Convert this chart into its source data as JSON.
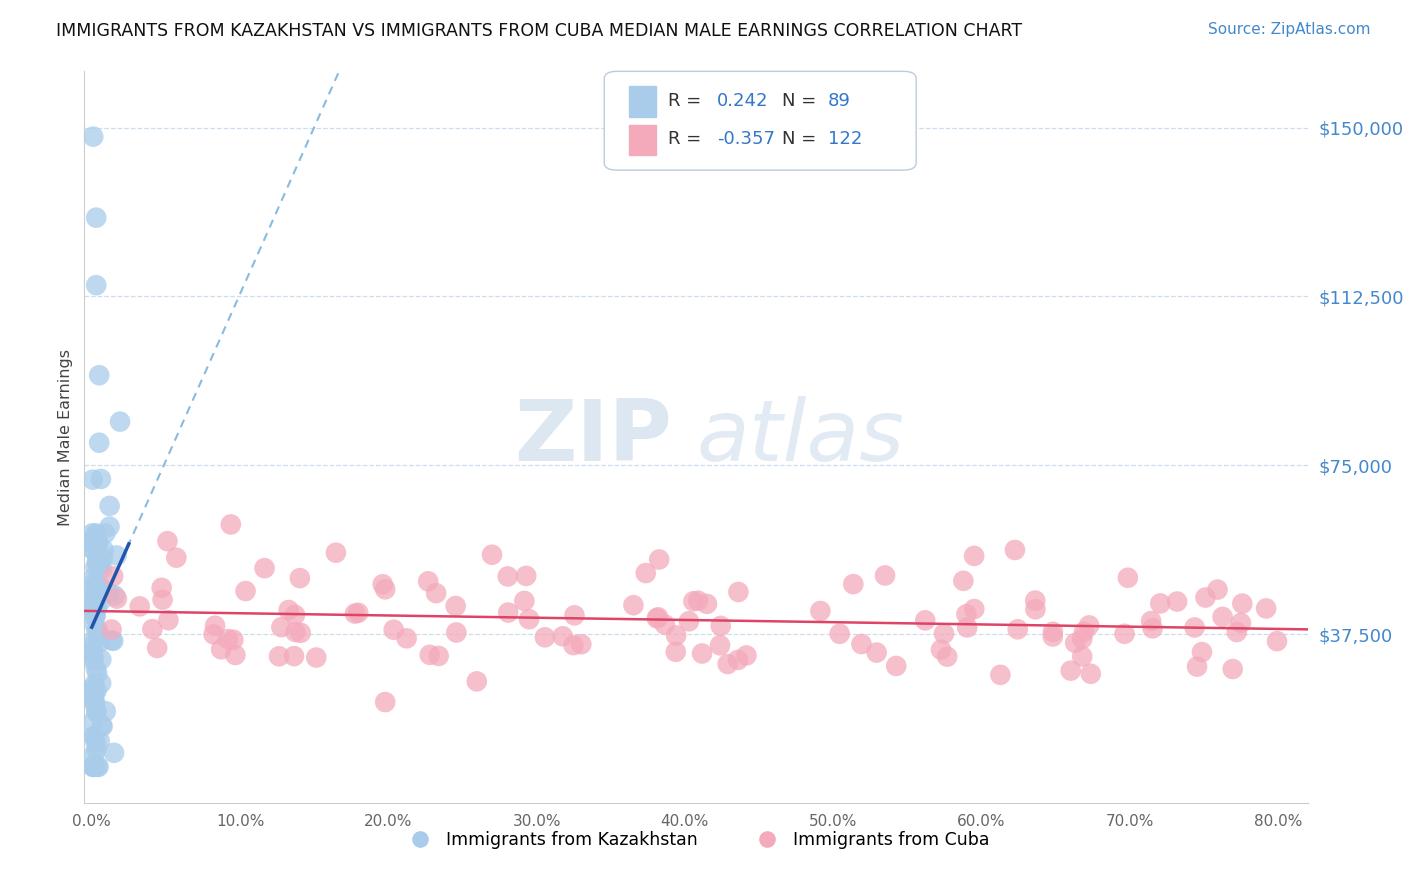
{
  "title": "IMMIGRANTS FROM KAZAKHSTAN VS IMMIGRANTS FROM CUBA MEDIAN MALE EARNINGS CORRELATION CHART",
  "source": "Source: ZipAtlas.com",
  "ylabel": "Median Male Earnings",
  "R_blue": 0.242,
  "N_blue": 89,
  "R_pink": -0.357,
  "N_pink": 122,
  "color_blue": "#A8CCEA",
  "color_pink": "#F4AABB",
  "line_blue_solid": "#2255AA",
  "line_blue_dashed": "#88BBDD",
  "line_pink": "#DD4466",
  "legend_blue_label": "Immigrants from Kazakhstan",
  "legend_pink_label": "Immigrants from Cuba",
  "ylim": [
    0,
    162500
  ],
  "xlim": [
    -0.005,
    0.82
  ],
  "yticks": [
    37500,
    75000,
    112500,
    150000
  ],
  "ytick_labels": [
    "$37,500",
    "$75,000",
    "$112,500",
    "$150,000"
  ],
  "xticks": [
    0.0,
    0.1,
    0.2,
    0.3,
    0.4,
    0.5,
    0.6,
    0.7,
    0.8
  ],
  "xtick_labels": [
    "0.0%",
    "10.0%",
    "20.0%",
    "30.0%",
    "40.0%",
    "50.0%",
    "60.0%",
    "70.0%",
    "80.0%"
  ],
  "watermark_zip": "ZIP",
  "watermark_atlas": "atlas",
  "grid_color": "#CCDDEE",
  "axis_color": "#CCCCCC"
}
